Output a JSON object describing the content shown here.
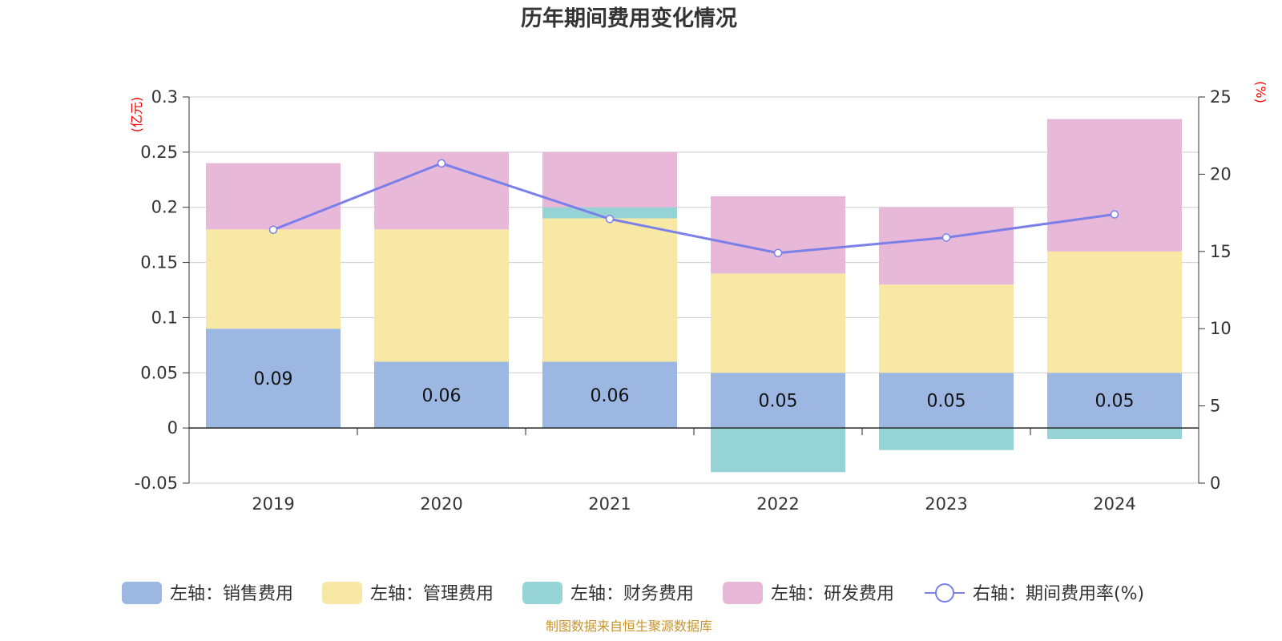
{
  "chart_data": {
    "type": "bar",
    "stacked": true,
    "title": "历年期间费用变化情况",
    "categories": [
      "2019",
      "2020",
      "2021",
      "2022",
      "2023",
      "2024"
    ],
    "y_left": {
      "unit": "(亿元)",
      "ylim": [
        -0.05,
        0.3
      ],
      "ticks": [
        -0.05,
        0,
        0.05,
        0.1,
        0.15,
        0.2,
        0.25,
        0.3
      ]
    },
    "y_right": {
      "unit": "(%)",
      "ylim": [
        0,
        25
      ],
      "ticks": [
        0,
        5,
        10,
        15,
        20,
        25
      ]
    },
    "series": [
      {
        "name": "左轴：销售费用",
        "axis": "left",
        "type": "bar",
        "color": "#9bb7e2",
        "values": [
          0.09,
          0.06,
          0.06,
          0.05,
          0.05,
          0.05
        ],
        "show_labels": true
      },
      {
        "name": "左轴：管理费用",
        "axis": "left",
        "type": "bar",
        "color": "#f7e8a6",
        "values": [
          0.09,
          0.12,
          0.13,
          0.09,
          0.08,
          0.11
        ]
      },
      {
        "name": "左轴：财务费用",
        "axis": "left",
        "type": "bar",
        "color": "#96d3d4",
        "values": [
          0,
          0,
          0.01,
          -0.04,
          -0.02,
          -0.01
        ]
      },
      {
        "name": "左轴：研发费用",
        "axis": "left",
        "type": "bar",
        "color": "#e8b8d8",
        "values": [
          0.06,
          0.07,
          0.05,
          0.07,
          0.07,
          0.12
        ]
      },
      {
        "name": "右轴：期间费用率(%)",
        "axis": "right",
        "type": "line",
        "color": "#7b7fe8",
        "values": [
          16.4,
          20.7,
          17.1,
          14.9,
          15.9,
          17.4
        ]
      }
    ],
    "grid": true,
    "legend_position": "bottom",
    "source_note": "制图数据来自恒生聚源数据库"
  }
}
